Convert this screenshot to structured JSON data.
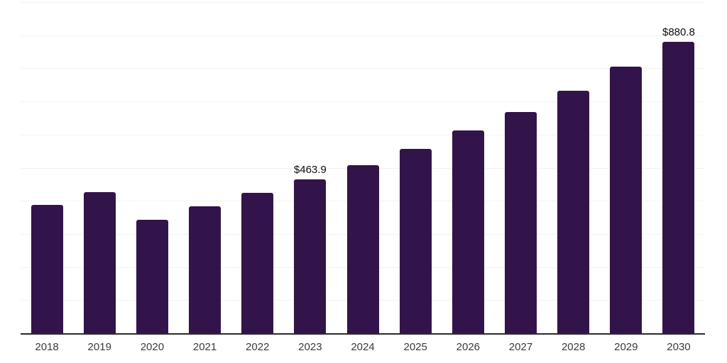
{
  "chart_data": {
    "type": "bar",
    "title": "",
    "xlabel": "",
    "ylabel": "",
    "categories": [
      "2018",
      "2019",
      "2020",
      "2021",
      "2022",
      "2023",
      "2024",
      "2025",
      "2026",
      "2027",
      "2028",
      "2029",
      "2030"
    ],
    "values": [
      388.0,
      426.5,
      343.1,
      383.8,
      424.4,
      463.9,
      507.8,
      556.9,
      612.5,
      668.1,
      732.3,
      804.9,
      880.8
    ],
    "value_labels": [
      "",
      "",
      "",
      "",
      "",
      "$463.9",
      "",
      "",
      "",
      "",
      "",
      "",
      "$880.8"
    ],
    "ylim": [
      0,
      1000
    ],
    "gridline_step": 100,
    "grid": true,
    "legend": false,
    "colors": {
      "bar": "#32144a",
      "gridline": "#f2f2f2",
      "axis_line": "#2b2b2b",
      "tick_label": "#3a3a3a",
      "value_label": "#0d0d0d",
      "background": "#ffffff"
    }
  }
}
